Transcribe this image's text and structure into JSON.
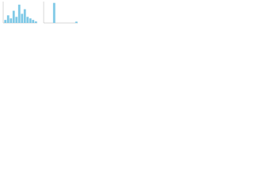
{
  "chart_data": [
    {
      "type": "bar",
      "color": "#7fc9e6",
      "categories": [
        null,
        null,
        null,
        null,
        null,
        null,
        null,
        null,
        null,
        null,
        null,
        null
      ],
      "values": [
        2,
        5,
        3,
        8,
        4,
        12,
        6,
        9,
        4,
        3,
        2,
        1
      ],
      "ylim": [
        0,
        14
      ]
    },
    {
      "type": "bar",
      "color": "#7fc9e6",
      "categories": [
        null,
        null,
        null,
        null,
        null,
        null,
        null,
        null,
        null,
        null,
        null,
        null
      ],
      "values": [
        0,
        0,
        0,
        30,
        0,
        0,
        0,
        0,
        0,
        0,
        0,
        2
      ],
      "ylim": [
        0,
        32
      ]
    }
  ]
}
